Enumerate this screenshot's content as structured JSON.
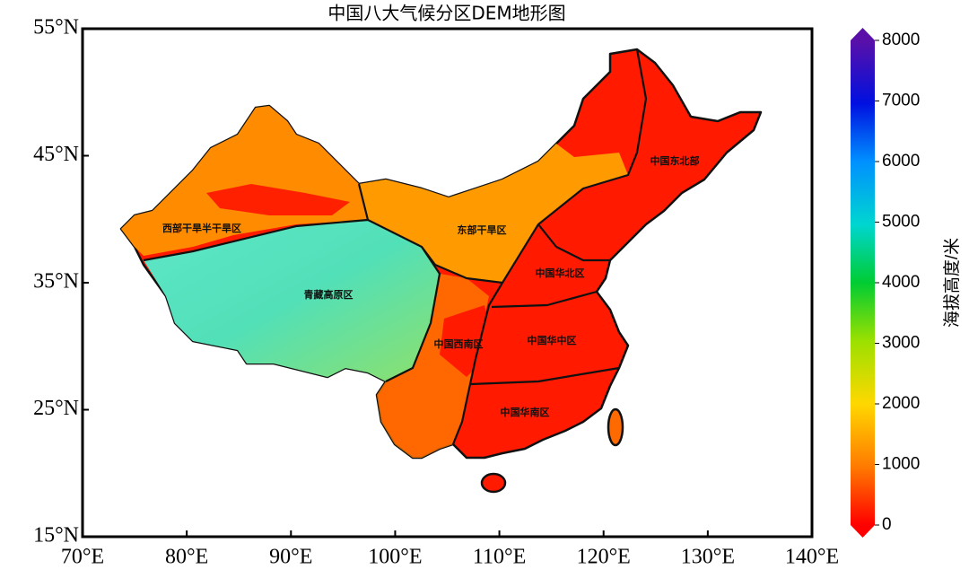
{
  "title": "中国八大气候分区DEM地形图",
  "map": {
    "xlim": [
      70,
      140
    ],
    "ylim": [
      15,
      55
    ],
    "xticks": [
      {
        "value": 70,
        "label": "70°E"
      },
      {
        "value": 80,
        "label": "80°E"
      },
      {
        "value": 90,
        "label": "90°E"
      },
      {
        "value": 100,
        "label": "100°E"
      },
      {
        "value": 110,
        "label": "110°E"
      },
      {
        "value": 120,
        "label": "120°E"
      },
      {
        "value": 130,
        "label": "130°E"
      },
      {
        "value": 140,
        "label": "140°E"
      }
    ],
    "yticks": [
      {
        "value": 15,
        "label": "15°N"
      },
      {
        "value": 25,
        "label": "25°N"
      },
      {
        "value": 35,
        "label": "35°N"
      },
      {
        "value": 45,
        "label": "45°N"
      },
      {
        "value": 55,
        "label": "55°N"
      }
    ]
  },
  "regions": [
    "西部干旱半干旱区",
    "东部干旱区",
    "青藏高原区",
    "中国东北部",
    "中国华北区",
    "中国西南区",
    "中国华中区",
    "中国华南区"
  ],
  "colorbar": {
    "label": "海拔高度/米",
    "range": [
      0,
      8000
    ],
    "ticks": [
      0,
      1000,
      2000,
      3000,
      4000,
      5000,
      6000,
      7000,
      8000
    ]
  }
}
